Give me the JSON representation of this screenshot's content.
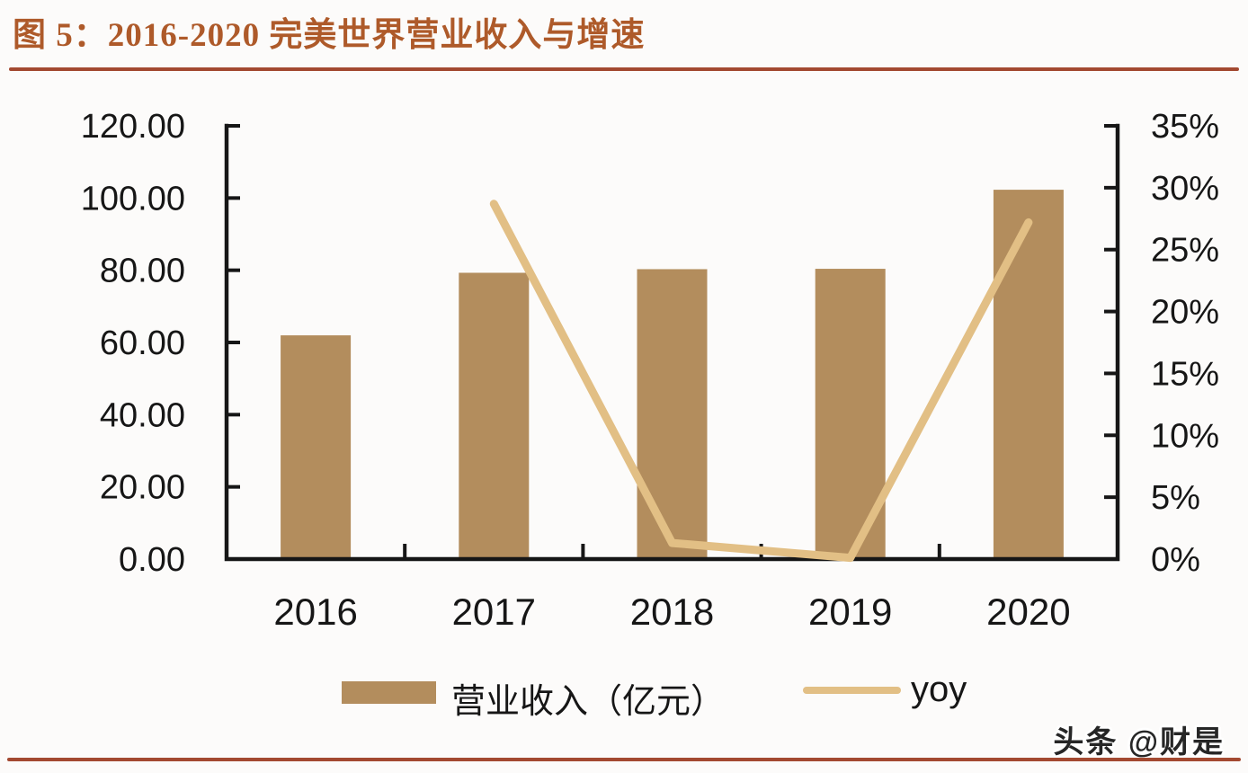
{
  "header": {
    "title": "图 5：2016-2020 完美世界营业收入与增速"
  },
  "legend": {
    "bar_label": "营业收入（亿元）",
    "line_label": "yoy"
  },
  "watermark": {
    "text": "头条 @财是"
  },
  "colors": {
    "background": "#FCFBFA",
    "title": "#AE5A2A",
    "accent_rule": "#A34931",
    "axis": "#161616",
    "bar": "#B38D5D",
    "line": "#E2BF85"
  },
  "chart_data": {
    "type": "bar",
    "title": "2016-2020 完美世界营业收入与增速",
    "categories": [
      "2016",
      "2017",
      "2018",
      "2019",
      "2020"
    ],
    "series": [
      {
        "name": "营业收入（亿元）",
        "type": "bar",
        "axis": "left",
        "values": [
          61.97,
          79.3,
          80.3,
          80.4,
          102.3
        ]
      },
      {
        "name": "yoy",
        "type": "line",
        "axis": "right",
        "values": [
          null,
          28.7,
          1.3,
          0.1,
          27.2
        ]
      }
    ],
    "left_axis": {
      "label": "",
      "min": 0,
      "max": 120,
      "step": 20,
      "tick_labels": [
        "120.00",
        "100.00",
        "80.00",
        "60.00",
        "40.00",
        "20.00",
        "0.00"
      ]
    },
    "right_axis": {
      "label": "",
      "min": 0,
      "max": 35,
      "step": 5,
      "unit": "%",
      "tick_labels": [
        "35%",
        "30%",
        "25%",
        "20%",
        "15%",
        "10%",
        "5%",
        "0%"
      ]
    },
    "grid": "off",
    "legend_position": "bottom"
  }
}
